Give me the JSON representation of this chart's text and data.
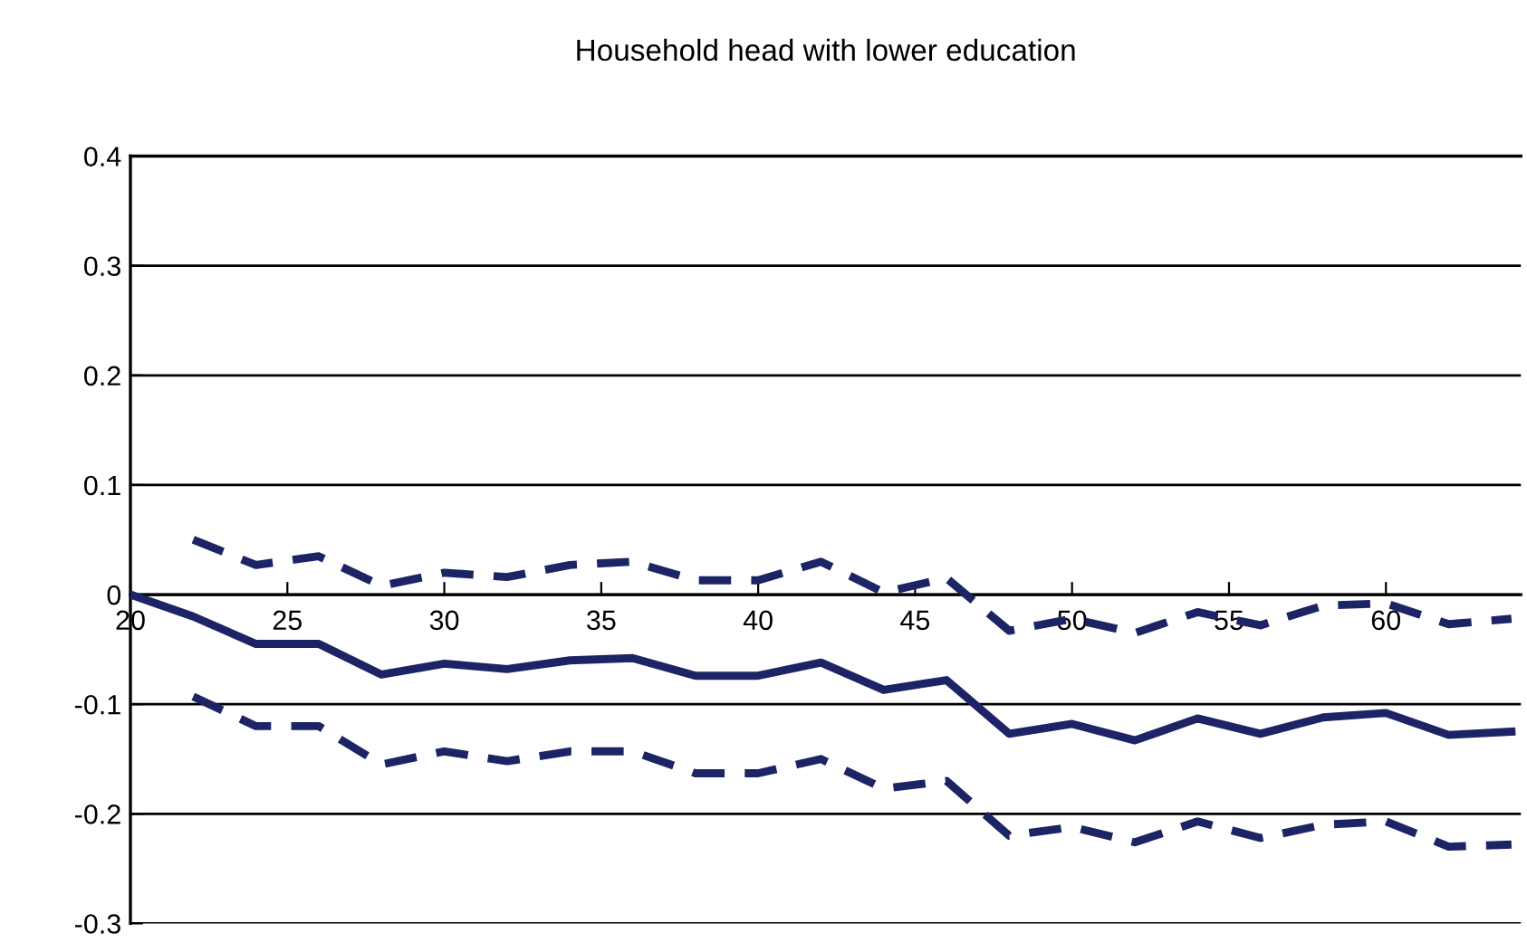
{
  "chart_data": {
    "type": "line",
    "title": "Household head with lower education",
    "x": [
      20,
      22,
      24,
      26,
      28,
      30,
      32,
      34,
      36,
      38,
      40,
      42,
      44,
      46,
      48,
      50,
      52,
      54,
      56,
      58,
      60,
      62,
      64
    ],
    "series": [
      {
        "color": "#1c2466",
        "line_style": "solid",
        "values": [
          0,
          -0.02,
          -0.045,
          -0.045,
          -0.073,
          -0.063,
          -0.068,
          -0.06,
          -0.058,
          -0.074,
          -0.074,
          -0.062,
          -0.087,
          -0.078,
          -0.127,
          -0.118,
          -0.133,
          -0.113,
          -0.127,
          -0.112,
          -0.108,
          -0.128,
          -0.125
        ]
      },
      {
        "color": "#1c2466",
        "line_style": "dashed",
        "values": [
          null,
          0.05,
          0.027,
          0.035,
          0.008,
          0.02,
          0.016,
          0.027,
          0.03,
          0.013,
          0.013,
          0.03,
          0.002,
          0.015,
          -0.033,
          -0.022,
          -0.035,
          -0.016,
          -0.028,
          -0.01,
          -0.008,
          -0.027,
          -0.022
        ]
      },
      {
        "color": "#1c2466",
        "line_style": "dashed",
        "values": [
          null,
          -0.093,
          -0.12,
          -0.12,
          -0.155,
          -0.143,
          -0.152,
          -0.143,
          -0.143,
          -0.163,
          -0.163,
          -0.15,
          -0.177,
          -0.17,
          -0.22,
          -0.212,
          -0.226,
          -0.207,
          -0.222,
          -0.21,
          -0.207,
          -0.23,
          -0.228
        ]
      }
    ],
    "xlim": [
      20,
      64.3
    ],
    "xticks": [
      20,
      25,
      30,
      35,
      40,
      45,
      50,
      55,
      60
    ],
    "ylim": [
      -0.3,
      0.4
    ],
    "yticks": [
      {
        "value": -0.3,
        "label": "-0.3"
      },
      {
        "value": -0.2,
        "label": "-0.2"
      },
      {
        "value": -0.1,
        "label": "-0.1"
      },
      0,
      0.1,
      0.2,
      0.3,
      0.4
    ],
    "grid": "y",
    "legend": false,
    "marker": "none"
  }
}
